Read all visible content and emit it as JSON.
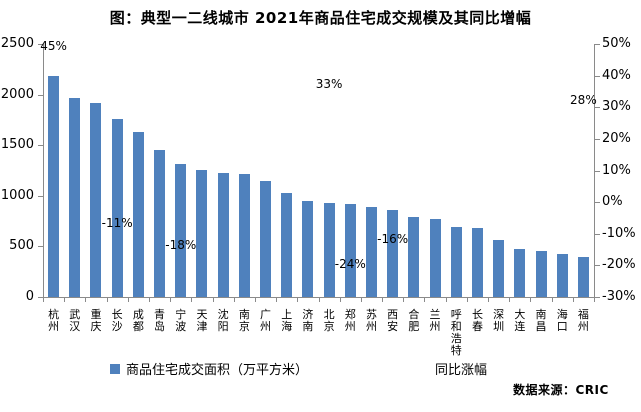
{
  "footer": {
    "source": "数据来源：CRIC"
  },
  "colors": {
    "bar": "#4F81BD",
    "axis": "#8a8a8a",
    "text": "#000000"
  },
  "chart_data": {
    "type": "bar",
    "title": "图：典型一二线城市 2021年商品住宅成交规模及其同比增幅",
    "categories": [
      "杭州",
      "武汉",
      "重庆",
      "长沙",
      "成都",
      "青岛",
      "宁波",
      "天津",
      "沈阳",
      "南京",
      "广州",
      "上海",
      "济南",
      "北京",
      "郑州",
      "苏州",
      "西安",
      "合肥",
      "兰州",
      "呼和浩特",
      "长春",
      "深圳",
      "大连",
      "南昌",
      "海口",
      "福州"
    ],
    "series": [
      {
        "name": "商品住宅成交面积（万平方米）",
        "type": "bar",
        "color": "#4F81BD",
        "axis": "left",
        "values": [
          2180,
          1965,
          1920,
          1760,
          1635,
          1455,
          1310,
          1255,
          1230,
          1220,
          1150,
          1030,
          950,
          930,
          920,
          885,
          860,
          795,
          770,
          695,
          685,
          565,
          475,
          455,
          420,
          400
        ]
      },
      {
        "name": "同比涨幅",
        "type": "line",
        "line_visible": false,
        "axis": "right",
        "labeled_points": [
          {
            "category": "杭州",
            "label": "45%",
            "value": 45
          },
          {
            "category": "长沙",
            "label": "-11%",
            "value": -11
          },
          {
            "category": "宁波",
            "label": "-18%",
            "value": -18
          },
          {
            "category": "北京",
            "label": "33%",
            "value": 33
          },
          {
            "category": "郑州",
            "label": "-24%",
            "value": -24
          },
          {
            "category": "西安",
            "label": "-16%",
            "value": -16
          },
          {
            "category": "福州",
            "label": "28%",
            "value": 28
          }
        ]
      }
    ],
    "legend": [
      "商品住宅成交面积（万平方米）",
      "同比涨幅"
    ],
    "legend_position": "bottom",
    "grid": false,
    "y_left": {
      "min": 0,
      "max": 2500,
      "ticks": [
        "2500",
        "2000",
        "1500",
        "1000",
        "500",
        "0"
      ]
    },
    "y_right": {
      "min": -30,
      "max": 50,
      "ticks": [
        "50%",
        "40%",
        "30%",
        "20%",
        "10%",
        "0%",
        "-10%",
        "-20%",
        "-30%"
      ]
    }
  }
}
